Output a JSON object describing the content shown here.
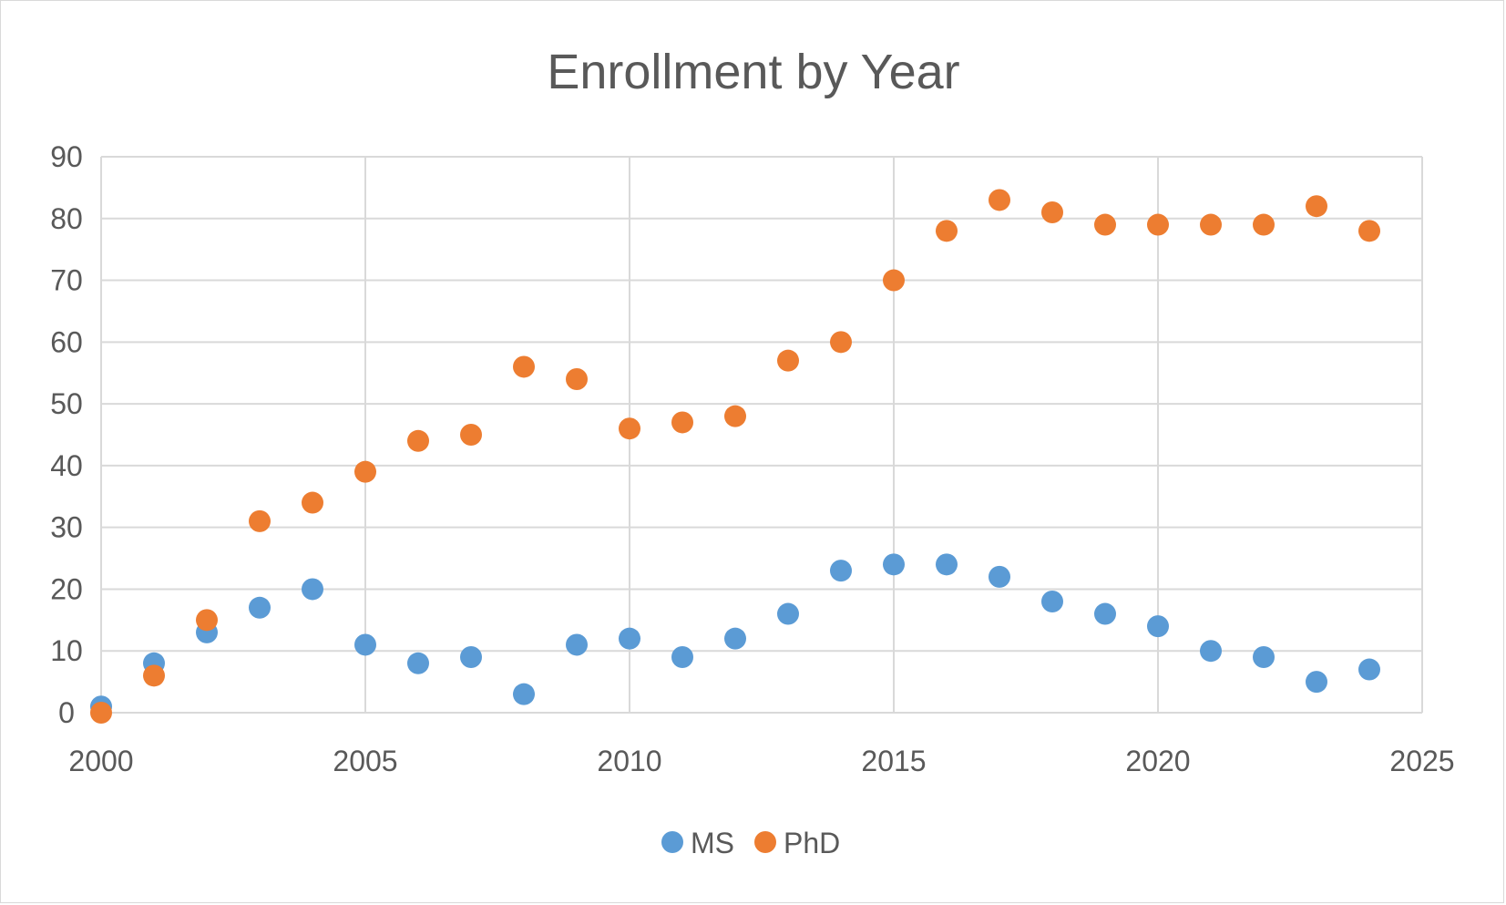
{
  "chart_data": {
    "type": "scatter",
    "title": "Enrollment by Year",
    "xlabel": "",
    "ylabel": "",
    "xlim": [
      2000,
      2025
    ],
    "ylim": [
      0,
      90
    ],
    "xticks": [
      "2000",
      "2005",
      "2010",
      "2015",
      "2020",
      "2025"
    ],
    "yticks": [
      "0",
      "10",
      "20",
      "30",
      "40",
      "50",
      "60",
      "70",
      "80",
      "90"
    ],
    "grid": true,
    "legend_position": "bottom",
    "series": [
      {
        "name": "MS",
        "color": "#5b9bd5",
        "x": [
          2000,
          2001,
          2002,
          2003,
          2004,
          2005,
          2006,
          2007,
          2008,
          2009,
          2010,
          2011,
          2012,
          2013,
          2014,
          2015,
          2016,
          2017,
          2018,
          2019,
          2020,
          2021,
          2022,
          2023,
          2024
        ],
        "y": [
          1,
          8,
          13,
          17,
          20,
          11,
          8,
          9,
          3,
          11,
          12,
          9,
          12,
          16,
          23,
          24,
          24,
          22,
          18,
          16,
          14,
          10,
          9,
          5,
          7
        ]
      },
      {
        "name": "PhD",
        "color": "#ed7d31",
        "x": [
          2000,
          2001,
          2002,
          2003,
          2004,
          2005,
          2006,
          2007,
          2008,
          2009,
          2010,
          2011,
          2012,
          2013,
          2014,
          2015,
          2016,
          2017,
          2018,
          2019,
          2020,
          2021,
          2022,
          2023,
          2024
        ],
        "y": [
          0,
          6,
          15,
          31,
          34,
          39,
          44,
          45,
          56,
          54,
          46,
          47,
          48,
          57,
          60,
          70,
          78,
          83,
          81,
          79,
          79,
          79,
          79,
          82,
          78
        ]
      }
    ]
  }
}
